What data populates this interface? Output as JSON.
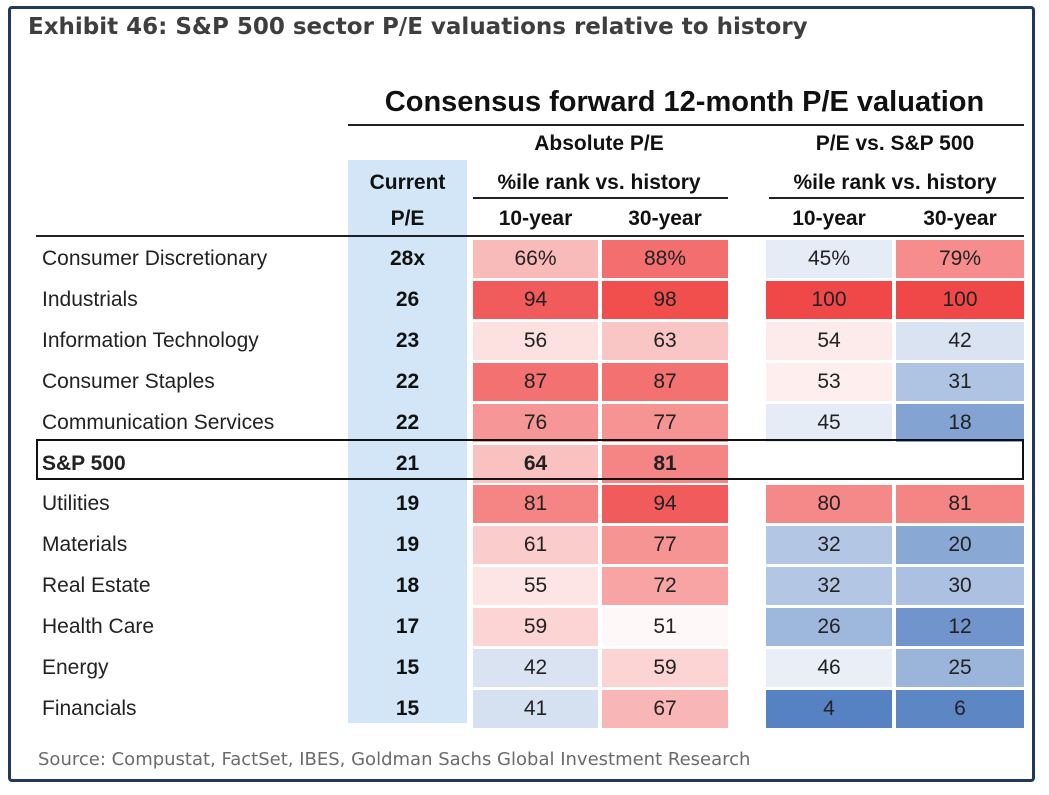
{
  "exhibit_title": "Exhibit 46: S&P 500 sector P/E valuations relative to history",
  "source": "Source: Compustat, FactSet, IBES, Goldman Sachs Global Investment Research",
  "chart_data": {
    "type": "table",
    "title": "Consensus forward 12-month P/E valuation",
    "headers": {
      "current_line1": "Current",
      "current_line2": "P/E",
      "absolute_group": "Absolute P/E",
      "absolute_sub": "%ile rank vs. history",
      "relative_group": "P/E vs. S&P 500",
      "relative_sub": "%ile rank vs. history",
      "abs_10": "10-year",
      "abs_30": "30-year",
      "rel_10": "10-year",
      "rel_30": "30-year"
    },
    "rows": [
      {
        "sector": "Consumer Discretionary",
        "current_pe": "28x",
        "abs_10": "66%",
        "abs_30": "88%",
        "rel_10": "45%",
        "rel_30": "79%"
      },
      {
        "sector": "Industrials",
        "current_pe": "26",
        "abs_10": "94",
        "abs_30": "98",
        "rel_10": "100",
        "rel_30": "100"
      },
      {
        "sector": "Information Technology",
        "current_pe": "23",
        "abs_10": "56",
        "abs_30": "63",
        "rel_10": "54",
        "rel_30": "42"
      },
      {
        "sector": "Consumer Staples",
        "current_pe": "22",
        "abs_10": "87",
        "abs_30": "87",
        "rel_10": "53",
        "rel_30": "31"
      },
      {
        "sector": "Communication Services",
        "current_pe": "22",
        "abs_10": "76",
        "abs_30": "77",
        "rel_10": "45",
        "rel_30": "18"
      },
      {
        "sector": "S&P 500",
        "current_pe": "21",
        "abs_10": "64",
        "abs_30": "81",
        "rel_10": "",
        "rel_30": "",
        "highlight": true
      },
      {
        "sector": "Utilities",
        "current_pe": "19",
        "abs_10": "81",
        "abs_30": "94",
        "rel_10": "80",
        "rel_30": "81"
      },
      {
        "sector": "Materials",
        "current_pe": "19",
        "abs_10": "61",
        "abs_30": "77",
        "rel_10": "32",
        "rel_30": "20"
      },
      {
        "sector": "Real Estate",
        "current_pe": "18",
        "abs_10": "55",
        "abs_30": "72",
        "rel_10": "32",
        "rel_30": "30"
      },
      {
        "sector": "Health Care",
        "current_pe": "17",
        "abs_10": "59",
        "abs_30": "51",
        "rel_10": "26",
        "rel_30": "12"
      },
      {
        "sector": "Energy",
        "current_pe": "15",
        "abs_10": "42",
        "abs_30": "59",
        "rel_10": "46",
        "rel_30": "25"
      },
      {
        "sector": "Financials",
        "current_pe": "15",
        "abs_10": "41",
        "abs_30": "67",
        "rel_10": "4",
        "rel_30": "6"
      }
    ],
    "color_scale": {
      "low": "#4a78bd",
      "mid": "#ffffff",
      "high": "#f04848",
      "midpoint": 50
    }
  }
}
